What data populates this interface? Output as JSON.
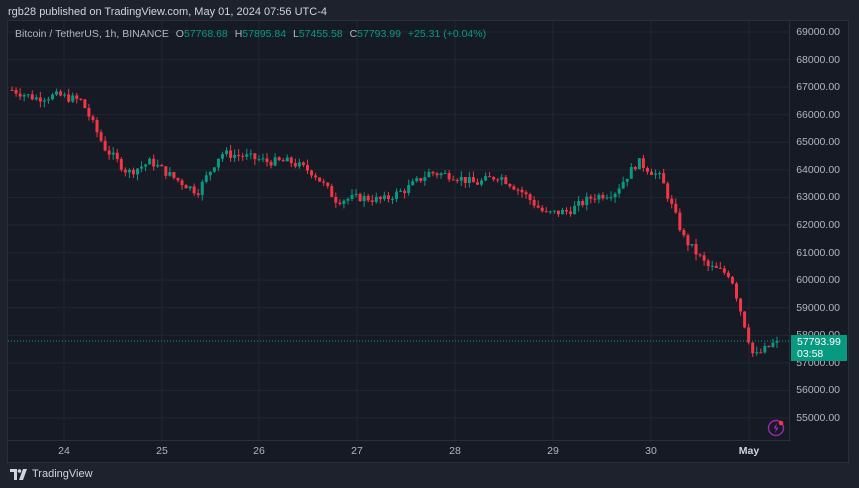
{
  "header": {
    "published": "rgb28 published on TradingView.com, May 01, 2024 07:56 UTC-4"
  },
  "legend": {
    "symbol": "Bitcoin / TetherUS, 1h, BINANCE",
    "o_label": "O",
    "o_value": "57768.68",
    "h_label": "H",
    "h_value": "57895.84",
    "l_label": "L",
    "l_value": "57455.58",
    "c_label": "C",
    "c_value": "57793.99",
    "change": "+25.31 (+0.04%)"
  },
  "price_tag": {
    "price": "57793.99",
    "countdown": "03:58"
  },
  "footer": {
    "brand": "TradingView"
  },
  "colors": {
    "up": "#089981",
    "down": "#f23645",
    "background": "#161a25",
    "grid": "#222631",
    "text": "#b2b5be"
  },
  "chart_data": {
    "type": "candlestick",
    "title": "Bitcoin / TetherUS, 1h, BINANCE",
    "xlabel": "",
    "ylabel": "",
    "ylim": [
      54500,
      69300
    ],
    "yticks": [
      "69000.00",
      "68000.00",
      "67000.00",
      "66000.00",
      "65000.00",
      "64000.00",
      "63000.00",
      "62000.00",
      "61000.00",
      "60000.00",
      "59000.00",
      "58000.00",
      "57000.00",
      "56000.00",
      "55000.00"
    ],
    "xticks": [
      "24",
      "25",
      "26",
      "27",
      "28",
      "29",
      "30",
      "May"
    ],
    "grid": true,
    "last_price": 57793.99,
    "approx_close_path": [
      {
        "x": "Apr 23 18:00",
        "close": 66900
      },
      {
        "x": "Apr 24 00:00",
        "close": 66600
      },
      {
        "x": "Apr 24 06:00",
        "close": 66700
      },
      {
        "x": "Apr 24 09:00",
        "close": 66500
      },
      {
        "x": "Apr 24 12:00",
        "close": 64800
      },
      {
        "x": "Apr 24 18:00",
        "close": 63900
      },
      {
        "x": "Apr 25 00:00",
        "close": 64300
      },
      {
        "x": "Apr 25 06:00",
        "close": 63700
      },
      {
        "x": "Apr 25 12:00",
        "close": 63200
      },
      {
        "x": "Apr 25 18:00",
        "close": 64600
      },
      {
        "x": "Apr 26 00:00",
        "close": 64500
      },
      {
        "x": "Apr 26 06:00",
        "close": 64300
      },
      {
        "x": "Apr 26 12:00",
        "close": 64300
      },
      {
        "x": "Apr 26 18:00",
        "close": 63900
      },
      {
        "x": "Apr 27 00:00",
        "close": 62900
      },
      {
        "x": "Apr 27 06:00",
        "close": 63000
      },
      {
        "x": "Apr 27 12:00",
        "close": 62900
      },
      {
        "x": "Apr 27 18:00",
        "close": 63300
      },
      {
        "x": "Apr 28 00:00",
        "close": 63900
      },
      {
        "x": "Apr 28 06:00",
        "close": 63800
      },
      {
        "x": "Apr 28 12:00",
        "close": 63500
      },
      {
        "x": "Apr 28 18:00",
        "close": 63800
      },
      {
        "x": "Apr 29 00:00",
        "close": 63200
      },
      {
        "x": "Apr 29 06:00",
        "close": 62400
      },
      {
        "x": "Apr 29 12:00",
        "close": 62500
      },
      {
        "x": "Apr 29 18:00",
        "close": 63000
      },
      {
        "x": "Apr 30 00:00",
        "close": 63200
      },
      {
        "x": "Apr 30 03:00",
        "close": 64300
      },
      {
        "x": "Apr 30 06:00",
        "close": 63700
      },
      {
        "x": "Apr 30 12:00",
        "close": 61500
      },
      {
        "x": "Apr 30 18:00",
        "close": 60500
      },
      {
        "x": "May 01 00:00",
        "close": 60200
      },
      {
        "x": "May 01 03:00",
        "close": 57200
      },
      {
        "x": "May 01 07:00",
        "close": 57794
      }
    ]
  }
}
